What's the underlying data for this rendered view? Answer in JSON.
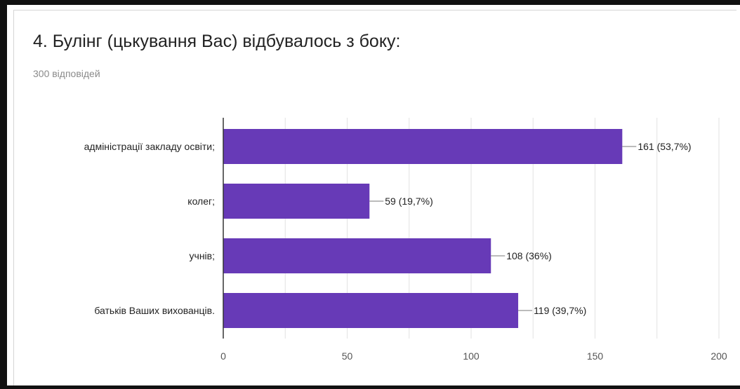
{
  "question": {
    "title": "4. Булінг (цькування Вас) відбувалось з боку:",
    "responses": "300 відповідей"
  },
  "colors": {
    "bar": "#673ab7",
    "grid": "#e2e2e2",
    "axis": "#333333"
  },
  "chart_data": {
    "type": "bar",
    "orientation": "horizontal",
    "categories": [
      "адміністрації закладу освіти;",
      "колег;",
      "учнів;",
      "батьків Ваших вихованців."
    ],
    "values": [
      161,
      59,
      108,
      119
    ],
    "data_labels": [
      "161 (53,7%)",
      "59 (19,7%)",
      "108 (36%)",
      "119 (39,7%)"
    ],
    "xlim": [
      0,
      200
    ],
    "xticks": [
      "0",
      "50",
      "100",
      "150",
      "200"
    ],
    "grid": true,
    "legend": "none"
  }
}
